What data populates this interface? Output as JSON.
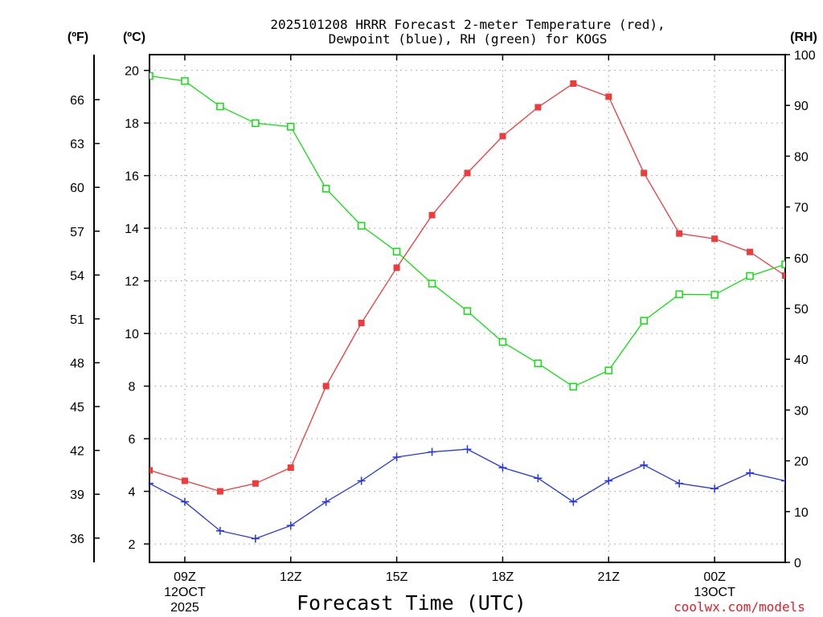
{
  "chart_data": {
    "type": "line",
    "title_line1": "2025101208 HRRR Forecast 2-meter Temperature (red),",
    "title_line2": "Dewpoint (blue), RH (green) for KOGS",
    "xlabel": "Forecast Time (UTC)",
    "credit": "coolwx.com/models",
    "units": {
      "fahrenheit": "(ºF)",
      "celsius": "(ºC)",
      "rh": "(RH)"
    },
    "x_hours": [
      8,
      9,
      10,
      11,
      12,
      13,
      14,
      15,
      16,
      17,
      18,
      19,
      20,
      21,
      22,
      23,
      24,
      25,
      26
    ],
    "xlim": [
      8,
      26
    ],
    "x_ticks": [
      {
        "hour": 9,
        "labels": [
          "09Z",
          "12OCT",
          "2025"
        ]
      },
      {
        "hour": 12,
        "labels": [
          "12Z"
        ]
      },
      {
        "hour": 15,
        "labels": [
          "15Z"
        ]
      },
      {
        "hour": 18,
        "labels": [
          "18Z"
        ]
      },
      {
        "hour": 21,
        "labels": [
          "21Z"
        ]
      },
      {
        "hour": 24,
        "labels": [
          "00Z",
          "13OCT"
        ]
      }
    ],
    "celsius_axis": {
      "ylim": [
        1.3,
        20.6
      ],
      "ticks": [
        2,
        4,
        6,
        8,
        10,
        12,
        14,
        16,
        18,
        20
      ]
    },
    "fahrenheit_axis": {
      "ticks": [
        36,
        39,
        42,
        45,
        48,
        51,
        54,
        57,
        60,
        63,
        66
      ]
    },
    "rh_axis": {
      "ylim": [
        0,
        100
      ],
      "ticks": [
        0,
        10,
        20,
        30,
        40,
        50,
        60,
        70,
        80,
        90,
        100
      ]
    },
    "series": [
      {
        "name": "Temperature",
        "units": "C",
        "color": "#ee3b3b",
        "marker": "filled-square",
        "axis": "celsius",
        "values": [
          4.8,
          4.4,
          4.0,
          4.3,
          4.9,
          8.0,
          10.4,
          12.5,
          14.5,
          16.1,
          17.5,
          18.6,
          19.5,
          19.0,
          16.1,
          13.8,
          13.6,
          13.1,
          12.2
        ]
      },
      {
        "name": "Dewpoint",
        "units": "C",
        "color": "#2233ee",
        "marker": "plus",
        "axis": "celsius",
        "values": [
          4.3,
          3.6,
          2.5,
          2.2,
          2.7,
          3.6,
          4.4,
          5.3,
          5.5,
          5.6,
          4.9,
          4.5,
          3.6,
          4.4,
          5.0,
          4.3,
          4.1,
          4.7,
          4.4
        ]
      },
      {
        "name": "RH",
        "units": "%",
        "color": "#11dd11",
        "marker": "open-square",
        "axis": "rh",
        "values": [
          95.8,
          94.8,
          89.8,
          86.5,
          85.8,
          73.6,
          66.3,
          61.2,
          54.9,
          49.5,
          43.4,
          39.2,
          34.6,
          37.8,
          47.6,
          52.8,
          52.7,
          56.4,
          58.7
        ]
      }
    ]
  }
}
